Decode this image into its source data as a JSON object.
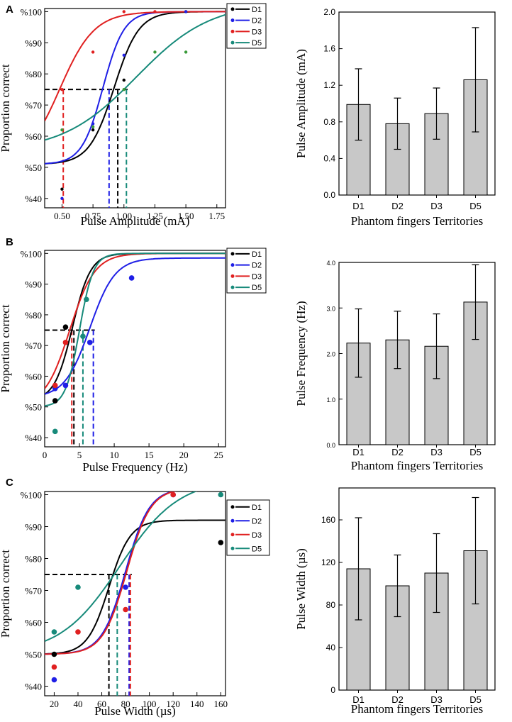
{
  "figure": {
    "colors": {
      "D1": "#000000",
      "D2": "#1f1fe6",
      "D3": "#e02020",
      "D5": "#178a7a",
      "bar_fill": "#c8c8c8",
      "D5_green_points": "#3a9a3a"
    }
  },
  "chart_data": [
    {
      "id": "A_left",
      "type": "scatter",
      "panel_letter": "A",
      "title": "",
      "xlabel": "Pulse Amplitude (mA)",
      "ylabel": "Proportion correct",
      "xlim": [
        0.36,
        1.82
      ],
      "ylim": [
        37,
        101
      ],
      "xticks": [
        0.5,
        0.75,
        1.0,
        1.25,
        1.5,
        1.75
      ],
      "xtick_labels": [
        "0.50",
        "0.75",
        "1.00",
        "1.25",
        "1.50",
        "1.75"
      ],
      "yticks": [
        40,
        50,
        60,
        70,
        80,
        90,
        100
      ],
      "ytick_labels": [
        "%40",
        "%50",
        "%60",
        "%70",
        "%80",
        "%90",
        "%100"
      ],
      "threshold_y": 75,
      "legend": [
        "D1",
        "D2",
        "D3",
        "D5"
      ],
      "series": [
        {
          "name": "D1",
          "points": [
            [
              0.5,
              43
            ],
            [
              0.75,
              62
            ],
            [
              1.0,
              78
            ],
            [
              1.5,
              100
            ]
          ],
          "curve": {
            "lower": 51,
            "upper": 100,
            "x50": 0.92,
            "scale": 0.1
          },
          "threshold_x": 0.95
        },
        {
          "name": "D2",
          "points": [
            [
              0.5,
              40
            ],
            [
              0.75,
              64
            ],
            [
              1.0,
              86
            ],
            [
              1.5,
              100
            ]
          ],
          "curve": {
            "lower": 51,
            "upper": 100,
            "x50": 0.83,
            "scale": 0.085
          },
          "threshold_x": 0.88
        },
        {
          "name": "D3",
          "points": [
            [
              0.5,
              75
            ],
            [
              0.75,
              87
            ],
            [
              1.0,
              100
            ],
            [
              1.25,
              100
            ]
          ],
          "curve": {
            "lower": 50,
            "upper": 100,
            "x50": 0.48,
            "scale": 0.14
          },
          "threshold_x": 0.51
        },
        {
          "name": "D5",
          "points": [
            [
              0.5,
              62
            ],
            [
              0.75,
              63
            ],
            [
              1.0,
              75
            ],
            [
              1.25,
              87
            ],
            [
              1.5,
              87
            ]
          ],
          "curve": {
            "lower": 55,
            "upper": 103,
            "x50": 1.1,
            "scale": 0.3
          },
          "threshold_x": 1.02
        }
      ]
    },
    {
      "id": "A_right",
      "type": "bar",
      "title": "",
      "xlabel": "Phantom fingers Territories",
      "ylabel": "Pulse Amplitude (mA)",
      "ylim": [
        0,
        2.0
      ],
      "yticks": [
        0.0,
        0.4,
        0.8,
        1.2,
        1.6,
        2.0
      ],
      "ytick_labels": [
        "0.0",
        "0.4",
        "0.8",
        "1.2",
        "1.6",
        "2.0"
      ],
      "categories": [
        "D1",
        "D2",
        "D3",
        "D5"
      ],
      "values": [
        0.99,
        0.78,
        0.89,
        1.26
      ],
      "errors": [
        0.39,
        0.28,
        0.28,
        0.57
      ]
    },
    {
      "id": "B_left",
      "type": "scatter",
      "panel_letter": "B",
      "title": "",
      "xlabel": "Pulse Frequency (Hz)",
      "ylabel": "Proportion correct",
      "xlim": [
        0,
        26
      ],
      "ylim": [
        37,
        101
      ],
      "xticks": [
        0,
        5,
        10,
        15,
        20,
        25
      ],
      "xtick_labels": [
        "0",
        "5",
        "10",
        "15",
        "20",
        "25"
      ],
      "yticks": [
        40,
        50,
        60,
        70,
        80,
        90,
        100
      ],
      "ytick_labels": [
        "%40",
        "%50",
        "%60",
        "%70",
        "%80",
        "%90",
        "%100"
      ],
      "threshold_y": 75,
      "legend": [
        "D1",
        "D2",
        "D3",
        "D5"
      ],
      "series": [
        {
          "name": "D1",
          "points": [
            [
              1.5,
              52
            ],
            [
              3,
              76
            ]
          ],
          "curve": {
            "lower": 52,
            "upper": 100,
            "x50": 4.0,
            "scale": 1.3
          },
          "threshold_x": 4.2
        },
        {
          "name": "D2",
          "points": [
            [
              1.5,
              56
            ],
            [
              3,
              57
            ],
            [
              6.5,
              71
            ],
            [
              12.5,
              92
            ]
          ],
          "curve": {
            "lower": 53,
            "upper": 98.5,
            "x50": 6.5,
            "scale": 1.8
          },
          "threshold_x": 7.0
        },
        {
          "name": "D3",
          "points": [
            [
              1.5,
              57
            ],
            [
              3,
              71
            ]
          ],
          "curve": {
            "lower": 50,
            "upper": 100,
            "x50": 3.6,
            "scale": 1.8
          },
          "threshold_x": 3.9
        },
        {
          "name": "D5",
          "points": [
            [
              1.5,
              42
            ],
            [
              5.5,
              73
            ],
            [
              6,
              85
            ]
          ],
          "curve": {
            "lower": 50,
            "upper": 100,
            "x50": 5.0,
            "scale": 1.0
          },
          "threshold_x": 5.5
        }
      ]
    },
    {
      "id": "B_right",
      "type": "bar",
      "title": "",
      "xlabel": "Phantom fingers Territories",
      "ylabel": "Pulse Frequency (Hz)",
      "ylim": [
        0,
        4.0
      ],
      "yticks": [
        0.0,
        1.0,
        2.0,
        3.0,
        4.0
      ],
      "ytick_labels": [
        "0.0",
        "1.0",
        "2.0",
        "3.0",
        "4.0"
      ],
      "categories": [
        "D1",
        "D2",
        "D3",
        "D5"
      ],
      "values": [
        2.23,
        2.3,
        2.16,
        3.13
      ],
      "errors": [
        0.75,
        0.63,
        0.71,
        0.82
      ]
    },
    {
      "id": "C_left",
      "type": "scatter",
      "panel_letter": "C",
      "title": "",
      "xlabel": "Pulse Width (µs)",
      "ylabel": "Proportion correct",
      "xlim": [
        12,
        164
      ],
      "ylim": [
        37,
        101
      ],
      "xticks": [
        20,
        40,
        60,
        80,
        100,
        120,
        140,
        160
      ],
      "xtick_labels": [
        "20",
        "40",
        "60",
        "80",
        "100",
        "120",
        "140",
        "160"
      ],
      "yticks": [
        40,
        50,
        60,
        70,
        80,
        90,
        100
      ],
      "ytick_labels": [
        "%40",
        "%50",
        "%60",
        "%70",
        "%80",
        "%90",
        "%100"
      ],
      "threshold_y": 75,
      "legend": [
        "D1",
        "D2",
        "D3",
        "D5"
      ],
      "series": [
        {
          "name": "D1",
          "points": [
            [
              20,
              50
            ],
            [
              160,
              85
            ]
          ],
          "curve": {
            "lower": 50,
            "upper": 92,
            "x50": 66,
            "scale": 9
          },
          "threshold_x": 66
        },
        {
          "name": "D2",
          "points": [
            [
              20,
              42
            ],
            [
              80,
              71
            ],
            [
              120,
              100
            ]
          ],
          "curve": {
            "lower": 50,
            "upper": 102,
            "x50": 80,
            "scale": 10
          },
          "threshold_x": 83
        },
        {
          "name": "D3",
          "points": [
            [
              20,
              46
            ],
            [
              40,
              57
            ],
            [
              80,
              64
            ],
            [
              120,
              100
            ]
          ],
          "curve": {
            "lower": 50,
            "upper": 102,
            "x50": 81,
            "scale": 10
          },
          "threshold_x": 84
        },
        {
          "name": "D5",
          "points": [
            [
              20,
              57
            ],
            [
              40,
              71
            ],
            [
              160,
              100
            ]
          ],
          "curve": {
            "lower": 50,
            "upper": 105,
            "x50": 75,
            "scale": 25
          },
          "threshold_x": 73
        }
      ]
    },
    {
      "id": "C_right",
      "type": "bar",
      "title": "",
      "xlabel": "Phantom fingers Territories",
      "ylabel": "Pulse Width (µs)",
      "ylim": [
        0,
        190
      ],
      "yticks": [
        0,
        40,
        80,
        120,
        160
      ],
      "ytick_labels": [
        "0",
        "40",
        "80",
        "120",
        "160"
      ],
      "categories": [
        "D1",
        "D2",
        "D3",
        "D5"
      ],
      "values": [
        114,
        98,
        110,
        131
      ],
      "errors": [
        48,
        29,
        37,
        50
      ]
    }
  ]
}
